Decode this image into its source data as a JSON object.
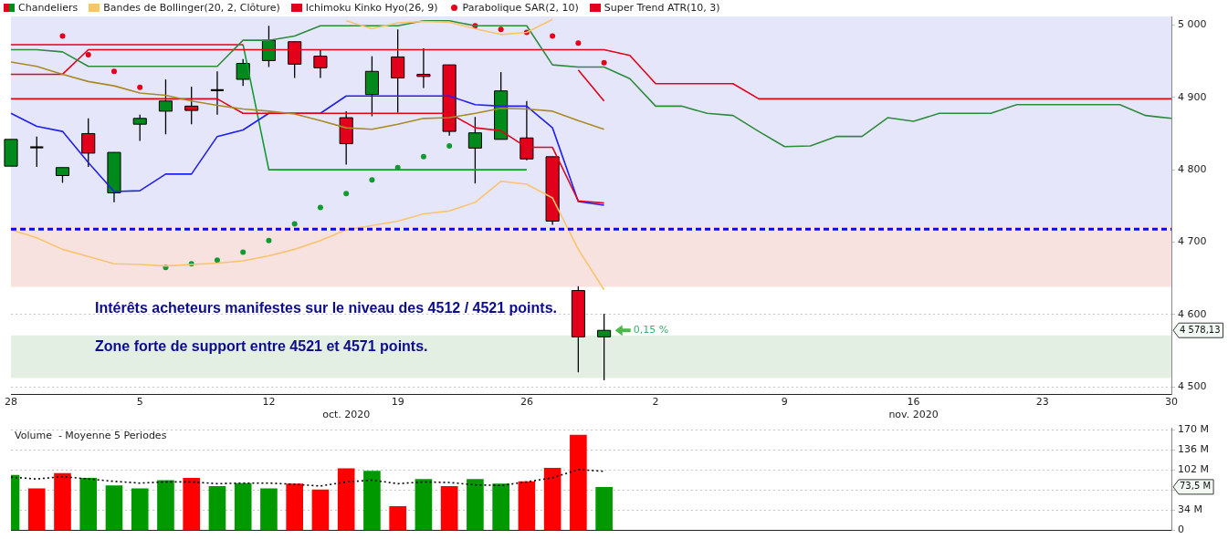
{
  "chart_data": [
    {
      "type": "candlestick",
      "categories": [
        "28",
        null,
        null,
        null,
        null,
        "5",
        null,
        null,
        null,
        null,
        "12",
        null,
        null,
        "\noct. 2020",
        null,
        "19",
        null,
        null,
        null,
        null,
        "26",
        null,
        null,
        null,
        null,
        "2",
        null,
        null,
        null,
        null,
        "9",
        null,
        null,
        null,
        null,
        "16\nnov. 2020",
        null,
        null,
        null,
        null,
        "23",
        null,
        null,
        null,
        null,
        "30"
      ],
      "series": [
        {
          "name": "Chandeliers",
          "ohlc": [
            [
              4805,
              4842,
              4805,
              4842
            ],
            [
              4831,
              4846,
              4804,
              4831
            ],
            [
              4792,
              4803,
              4782,
              4803
            ],
            [
              4850,
              4871,
              4804,
              4823
            ],
            [
              4768,
              4824,
              4755,
              4824
            ],
            [
              4863,
              4876,
              4840,
              4871
            ],
            [
              4881,
              4925,
              4849,
              4895
            ],
            [
              4888,
              4915,
              4863,
              4882
            ],
            [
              4910,
              4936,
              4876,
              4910
            ],
            [
              4925,
              4953,
              4916,
              4947
            ],
            [
              4951,
              4999,
              4942,
              4979
            ],
            [
              4977,
              4977,
              4927,
              4946
            ],
            [
              4957,
              4966,
              4927,
              4941
            ],
            [
              4872,
              4881,
              4807,
              4836
            ],
            [
              4904,
              4957,
              4874,
              4936
            ],
            [
              4956,
              4994,
              4879,
              4927
            ],
            [
              4932,
              4968,
              4913,
              4929
            ],
            [
              4945,
              4945,
              4847,
              4853
            ],
            [
              4830,
              4873,
              4781,
              4851
            ],
            [
              4842,
              4935,
              4842,
              4909
            ],
            [
              4844,
              4895,
              4813,
              4815
            ],
            [
              4818,
              4818,
              4724,
              4729
            ],
            [
              4633,
              4639,
              4520,
              4569
            ],
            [
              4569,
              4601,
              4509,
              4578
            ],
            null,
            null,
            null,
            null,
            null,
            null,
            null,
            null,
            null,
            null,
            null,
            null,
            null,
            null,
            null,
            null,
            null,
            null,
            null,
            null,
            null,
            null
          ],
          "colors": [
            "#008a1c",
            "#000000",
            "#008a1c",
            "#e3001b",
            "#008a1c",
            "#008a1c",
            "#008a1c",
            "#e3001b",
            "#000000",
            "#008a1c",
            "#008a1c",
            "#e3001b",
            "#e3001b",
            "#e3001b",
            "#008a1c",
            "#e3001b",
            "#e3001b",
            "#e3001b",
            "#008a1c",
            "#008a1c",
            "#e3001b",
            "#e3001b",
            "#e3001b",
            "#008a1c",
            null,
            null,
            null,
            null,
            null,
            null,
            null,
            null,
            null,
            null,
            null,
            null,
            null,
            null,
            null,
            null,
            null,
            null,
            null,
            null,
            null,
            null
          ]
        },
        {
          "type": "line",
          "name": "Bandes de Bollinger(20, 2, Clôture)",
          "color": "#f9c46e",
          "values": [
            4717,
            4706,
            4690,
            4680,
            4670,
            4669,
            4667,
            4669,
            4671,
            4674,
            4681,
            4690,
            4702,
            4717,
            4723,
            4729,
            4739,
            4743,
            4755,
            4784,
            4780,
            4761,
            4690,
            4634,
            null,
            null,
            null,
            null,
            null,
            null,
            null,
            null,
            null,
            null,
            null,
            null,
            null,
            null,
            null,
            null,
            null,
            null,
            null,
            null,
            null,
            null
          ]
        },
        {
          "type": "line",
          "color": "#f9c46e",
          "values": [
            null,
            null,
            null,
            null,
            null,
            null,
            null,
            null,
            null,
            null,
            null,
            null,
            null,
            5006,
            4995,
            5003,
            5005,
            5004,
            4995,
            4987,
            4990,
            5008,
            null,
            null,
            null,
            null,
            null,
            null,
            null,
            null,
            null,
            null,
            null,
            null,
            null,
            null,
            null,
            null,
            null,
            null,
            null,
            null,
            null,
            null,
            null,
            null
          ]
        },
        {
          "type": "line",
          "color": "#a88a26",
          "values": [
            4949,
            4943,
            4932,
            4922,
            4916,
            4906,
            4903,
            4895,
            4889,
            4884,
            4881,
            4877,
            4868,
            4858,
            4856,
            4863,
            4871,
            4872,
            4878,
            4885,
            4884,
            4881,
            4868,
            4856,
            null,
            null,
            null,
            null,
            null,
            null,
            null,
            null,
            null,
            null,
            null,
            null,
            null,
            null,
            null,
            null,
            null,
            null,
            null,
            null,
            null,
            null
          ]
        },
        {
          "type": "line",
          "name": "Ichimoku Kinko Hyo(26, 9)",
          "color": "#e3001b",
          "values": [
            4898,
            4898,
            4898,
            4898,
            4898,
            4898,
            4898,
            4898,
            4898,
            4878,
            4878,
            4878,
            4878,
            4878,
            4878,
            4878,
            4878,
            4878,
            4858,
            4854,
            4831,
            4831,
            4757,
            4754,
            null,
            null,
            null,
            null,
            null,
            null,
            null,
            null,
            null,
            null,
            null,
            null,
            null,
            null,
            null,
            null,
            null,
            null,
            null,
            null,
            null,
            null
          ]
        },
        {
          "type": "line",
          "color": "#2020f0",
          "values": [
            4878,
            4860,
            4853,
            4810,
            4770,
            4771,
            4794,
            4794,
            4846,
            4855,
            4878,
            4878,
            4878,
            4902,
            4902,
            4902,
            4902,
            4902,
            4890,
            4888,
            4888,
            4858,
            4756,
            4751,
            null,
            null,
            null,
            null,
            null,
            null,
            null,
            null,
            null,
            null,
            null,
            null,
            null,
            null,
            null,
            null,
            null,
            null,
            null,
            null,
            null,
            null
          ]
        },
        {
          "type": "line",
          "color": "#2e8b3e",
          "values": [
            4966,
            4966,
            4963,
            4943,
            4943,
            4943,
            4943,
            4943,
            4943,
            4979,
            4979,
            4985,
            4999,
            4999,
            4999,
            4999,
            5006,
            5006,
            4999,
            4999,
            4999,
            4945,
            4942,
            4942,
            4926,
            4888,
            4888,
            4878,
            4875,
            4853,
            4832,
            4833,
            4846,
            4846,
            4872,
            4867,
            4878,
            4878,
            4878,
            4890,
            4890,
            4890,
            4890,
            4890,
            4875,
            4871
          ]
        },
        {
          "type": "line",
          "color": "#e3001b",
          "values": [
            4932,
            4932,
            4932,
            4966,
            4966,
            4966,
            4966,
            4966,
            4966,
            4966,
            4966,
            4966,
            4966,
            4966,
            4966,
            4966,
            4966,
            4966,
            4966,
            4966,
            4966,
            4966,
            4966,
            4966,
            4958,
            4919,
            4919,
            4919,
            4919,
            4898,
            4898,
            4898,
            4898,
            4898,
            4898,
            4898,
            4898,
            4898,
            4898,
            4898,
            4898,
            4898,
            4898,
            4898,
            4898,
            4898
          ]
        },
        {
          "type": "scatter",
          "name": "Parabolique SAR(2, 10)",
          "color": "#e3001b",
          "marker": "circle",
          "values": [
            null,
            null,
            4985,
            4959,
            4936,
            4914,
            null,
            null,
            null,
            null,
            null,
            null,
            null,
            null,
            null,
            null,
            null,
            null,
            4999,
            4994,
            4990,
            4985,
            4975,
            4948,
            null,
            null,
            null,
            null,
            null,
            null,
            null,
            null,
            null,
            null,
            null,
            null,
            null,
            null,
            null,
            null,
            null,
            null,
            null,
            null,
            null,
            null
          ]
        },
        {
          "type": "scatter",
          "color": "#109a30",
          "marker": "circle",
          "values": [
            null,
            null,
            null,
            null,
            null,
            null,
            4665,
            4670,
            4675,
            4686,
            4702,
            4725,
            4748,
            4767,
            4786,
            4803,
            4818,
            4833,
            null,
            null,
            null,
            null,
            null,
            null,
            null,
            null,
            null,
            null,
            null,
            null,
            null,
            null,
            null,
            null,
            null,
            null,
            null,
            null,
            null,
            null,
            null,
            null,
            null,
            null,
            null,
            null
          ]
        },
        {
          "type": "line",
          "name": "Super Trend ATR(10, 3)",
          "color": "#e3001b",
          "values": [
            4973,
            4973,
            4973,
            4973,
            4973,
            4973,
            4973,
            4973,
            4973,
            4973,
            null,
            null,
            null,
            null,
            null,
            null,
            null,
            null,
            null,
            null,
            null,
            null,
            4938,
            4895,
            null,
            null,
            null,
            null,
            null,
            null,
            null,
            null,
            null,
            null,
            null,
            null,
            null,
            null,
            null,
            null,
            null,
            null,
            null,
            null,
            null,
            null
          ]
        },
        {
          "type": "line",
          "color": "#109a30",
          "values": [
            null,
            null,
            null,
            null,
            null,
            null,
            null,
            null,
            null,
            4973,
            4800,
            4800,
            4800,
            4800,
            4800,
            4800,
            4800,
            4800,
            4800,
            4800,
            4800,
            null,
            null,
            null,
            null,
            null,
            null,
            null,
            null,
            null,
            null,
            null,
            null,
            null,
            null,
            null,
            null,
            null,
            null,
            null,
            null,
            null,
            null,
            null,
            null,
            null
          ]
        }
      ],
      "ylim": [
        4490,
        5012
      ],
      "yticks": [
        {
          "value": 4500,
          "label": "4 500"
        },
        {
          "value": 4600,
          "label": "4 600"
        },
        {
          "value": 4700,
          "label": "4 700"
        },
        {
          "value": 4800,
          "label": "4 800"
        },
        {
          "value": 4900,
          "label": "4 900"
        },
        {
          "value": 5000,
          "label": "5 000"
        }
      ],
      "grid": "y",
      "legend": "top left",
      "marker": "none",
      "ref_lines": [
        {
          "axis": "y",
          "value": 4718,
          "color": "#0a0ae6",
          "line_style": "dashed"
        }
      ],
      "bands": [
        {
          "axis": "y",
          "from": 4718,
          "to": 5012,
          "color": "#e6e6fb"
        },
        {
          "axis": "y",
          "from": 4638,
          "to": 4722,
          "color": "#f8e2e0"
        },
        {
          "axis": "y",
          "from": 4512,
          "to": 4571,
          "color": "#e4efe4"
        }
      ],
      "annotations": [
        "Intérêts acheteurs manifestes sur le niveau des 4512 / 4521 points.",
        "Zone forte de support entre 4521 et 4571 points.",
        "0,15 %",
        "4 578,13"
      ]
    },
    {
      "type": "bar",
      "title": "Volume  - Moyenne 5 Periodes",
      "categories": [
        null,
        null,
        null,
        null,
        null,
        null,
        null,
        null,
        null,
        null,
        null,
        null,
        null,
        null,
        null,
        null,
        null,
        null,
        null,
        null,
        null,
        null,
        null,
        null,
        null,
        null,
        null,
        null,
        null,
        null,
        null,
        null,
        null,
        null,
        null,
        null,
        null,
        null,
        null,
        null,
        null,
        null,
        null,
        null,
        null,
        null
      ],
      "series": [
        {
          "values": [
            94,
            71,
            97,
            89,
            76,
            71,
            85,
            89,
            75,
            80,
            71,
            79,
            69,
            105,
            101,
            41,
            87,
            75,
            87,
            79,
            83,
            106,
            162,
            73.5,
            null,
            null,
            null,
            null,
            null,
            null,
            null,
            null,
            null,
            null,
            null,
            null,
            null,
            null,
            null,
            null,
            null,
            null,
            null,
            null,
            null,
            null
          ],
          "colors": [
            "#009a00",
            "#ff0000",
            "#ff0000",
            "#009a00",
            "#009a00",
            "#009a00",
            "#009a00",
            "#ff0000",
            "#009a00",
            "#009a00",
            "#009a00",
            "#ff0000",
            "#ff0000",
            "#ff0000",
            "#009a00",
            "#ff0000",
            "#009a00",
            "#ff0000",
            "#009a00",
            "#009a00",
            "#ff0000",
            "#ff0000",
            "#ff0000",
            "#009a00",
            null,
            null,
            null,
            null,
            null,
            null,
            null,
            null,
            null,
            null,
            null,
            null,
            null,
            null,
            null,
            null,
            null,
            null,
            null,
            null,
            null,
            null
          ]
        },
        {
          "type": "line",
          "color": "#000000",
          "line_style": "dotted",
          "values": [
            90,
            87,
            91,
            87,
            83,
            80,
            82,
            82,
            79,
            80,
            80,
            78,
            75,
            82,
            85,
            79,
            82,
            81,
            77,
            76,
            82,
            89,
            103,
            100,
            null,
            null,
            null,
            null,
            null,
            null,
            null,
            null,
            null,
            null,
            null,
            null,
            null,
            null,
            null,
            null,
            null,
            null,
            null,
            null,
            null,
            null
          ]
        }
      ],
      "ylim": [
        0,
        173
      ],
      "yticks": [
        0,
        {
          "value": 34,
          "label": "34 M"
        },
        {
          "value": 68,
          "label": null
        },
        {
          "value": 102,
          "label": "102 M"
        },
        {
          "value": 136,
          "label": "136 M"
        },
        {
          "value": 170,
          "label": "170 M"
        }
      ],
      "grid": "y",
      "marker": "none",
      "tick_labels": "y",
      "annotations": [
        "73,5 M"
      ]
    }
  ]
}
